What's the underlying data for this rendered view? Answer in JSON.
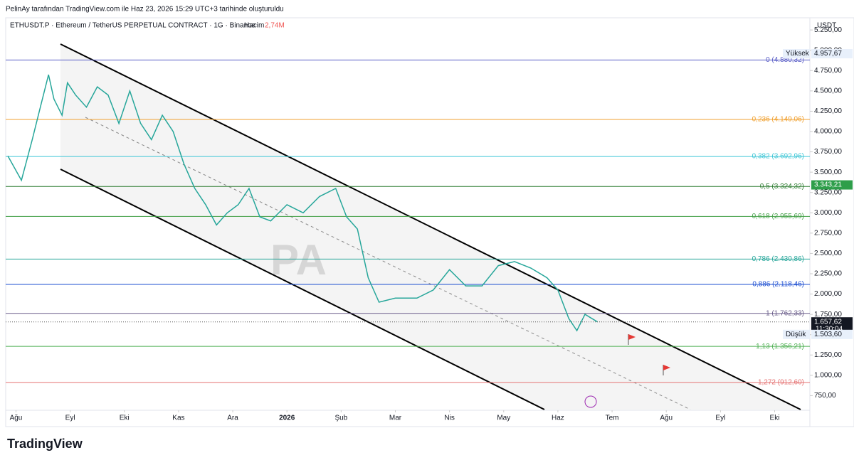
{
  "header": {
    "credit": "PelinAy tarafından TradingView.com ile Haz 23, 2026 15:29 UTC+3 tarihinde oluşturuldu",
    "symbol": "ETHUSDT.P · Ethereum / TetherUS PERPETUAL CONTRACT · 1G · Binance",
    "volume_label": "Hacim",
    "volume": "2,74M",
    "currency": "USDT"
  },
  "logo": "TradingView",
  "chart_data": {
    "type": "line",
    "xlim": [
      -0.19,
      14.65
    ],
    "ylim": [
      570,
      5400
    ],
    "xticks": [
      {
        "value": 0,
        "label": "Ağu"
      },
      {
        "value": 1,
        "label": "Eyl"
      },
      {
        "value": 2,
        "label": "Eki"
      },
      {
        "value": 3,
        "label": "Kas"
      },
      {
        "value": 4,
        "label": "Ara"
      },
      {
        "value": 5,
        "label": "2026"
      },
      {
        "value": 6,
        "label": "Şub"
      },
      {
        "value": 7,
        "label": "Mar"
      },
      {
        "value": 8,
        "label": "Nis"
      },
      {
        "value": 9,
        "label": "May"
      },
      {
        "value": 10,
        "label": "Haz"
      },
      {
        "value": 11,
        "label": "Tem"
      },
      {
        "value": 12,
        "label": "Ağu"
      },
      {
        "value": 13,
        "label": "Eyl"
      },
      {
        "value": 14,
        "label": "Eki"
      }
    ],
    "yticks": [
      {
        "value": 750,
        "label": "750,00"
      },
      {
        "value": 1000,
        "label": "1.000,00"
      },
      {
        "value": 1250,
        "label": "1.250,00"
      },
      {
        "value": 1500,
        "label": "1.500,00"
      },
      {
        "value": 1750,
        "label": "1.750,00"
      },
      {
        "value": 2000,
        "label": "2.000,00"
      },
      {
        "value": 2250,
        "label": "2.250,00"
      },
      {
        "value": 2500,
        "label": "2.500,00"
      },
      {
        "value": 2750,
        "label": "2.750,00"
      },
      {
        "value": 3000,
        "label": "3.000,00"
      },
      {
        "value": 3250,
        "label": "3.250,00"
      },
      {
        "value": 3500,
        "label": "3.500,00"
      },
      {
        "value": 3750,
        "label": "3.750,00"
      },
      {
        "value": 4000,
        "label": "4.000,00"
      },
      {
        "value": 4250,
        "label": "4.250,00"
      },
      {
        "value": 4500,
        "label": "4.500,00"
      },
      {
        "value": 4750,
        "label": "4.750,00"
      },
      {
        "value": 5000,
        "label": "5.000,00"
      },
      {
        "value": 5250,
        "label": "5.250,00"
      }
    ],
    "series": [
      {
        "name": "ETHUSDT.P",
        "color": "#26a69a",
        "x": [
          -0.15,
          0.1,
          0.3,
          0.45,
          0.6,
          0.7,
          0.85,
          0.95,
          1.1,
          1.3,
          1.5,
          1.7,
          1.9,
          2.1,
          2.3,
          2.5,
          2.7,
          2.9,
          3.1,
          3.3,
          3.5,
          3.7,
          3.9,
          4.1,
          4.3,
          4.5,
          4.7,
          5.0,
          5.3,
          5.6,
          5.9,
          6.1,
          6.3,
          6.5,
          6.7,
          7.0,
          7.4,
          7.7,
          8.0,
          8.3,
          8.6,
          8.9,
          9.2,
          9.5,
          9.8,
          10.0,
          10.2,
          10.35,
          10.5,
          10.73
        ],
        "values": [
          3700,
          3400,
          3900,
          4300,
          4700,
          4400,
          4200,
          4600,
          4450,
          4300,
          4550,
          4450,
          4100,
          4500,
          4100,
          3900,
          4200,
          4000,
          3600,
          3300,
          3100,
          2850,
          3000,
          3100,
          3300,
          2950,
          2900,
          3100,
          3000,
          3200,
          3300,
          2950,
          2800,
          2200,
          1900,
          1950,
          1950,
          2050,
          2300,
          2100,
          2100,
          2350,
          2400,
          2320,
          2200,
          2050,
          1700,
          1550,
          1750,
          1657.62
        ]
      }
    ],
    "levels": [
      {
        "value": 4880.32,
        "label": "0 (4.880,32)",
        "color": "#5b5fc7"
      },
      {
        "value": 4149.06,
        "label": "0,236 (4.149,06)",
        "color": "#f0a030"
      },
      {
        "value": 3692.96,
        "label": "0,382 (3.692,96)",
        "color": "#3ec6d6"
      },
      {
        "value": 3324.32,
        "label": "0,5 (3.324,32)",
        "color": "#2e7d32"
      },
      {
        "value": 2955.69,
        "label": "0,618 (2.955,69)",
        "color": "#43a047"
      },
      {
        "value": 2430.86,
        "label": "0,786 (2.430,86)",
        "color": "#26a69a"
      },
      {
        "value": 2118.46,
        "label": "0,886 (2.118,46)",
        "color": "#1e4fd1"
      },
      {
        "value": 1762.33,
        "label": "1 (1.762,33)",
        "color": "#6a5d8a"
      },
      {
        "value": 1356.21,
        "label": "1,13 (1.356,21)",
        "color": "#4caf50"
      },
      {
        "value": 912.6,
        "label": "1,272 (912,60)",
        "color": "#e57373"
      }
    ],
    "badges": [
      {
        "value": 4957.67,
        "label": "4.957,67",
        "tag": "Yüksek",
        "color": "#e8f0fb"
      },
      {
        "value": 3343.21,
        "label": "3.343,21",
        "color": "#2e9e4a"
      },
      {
        "value": 1657.62,
        "label": "1.657,62",
        "time": "11:30:04",
        "color": "#131722"
      },
      {
        "value": 1503.6,
        "label": "1.503,60",
        "tag": "Düşük",
        "color": "#e8f0fb"
      }
    ]
  }
}
